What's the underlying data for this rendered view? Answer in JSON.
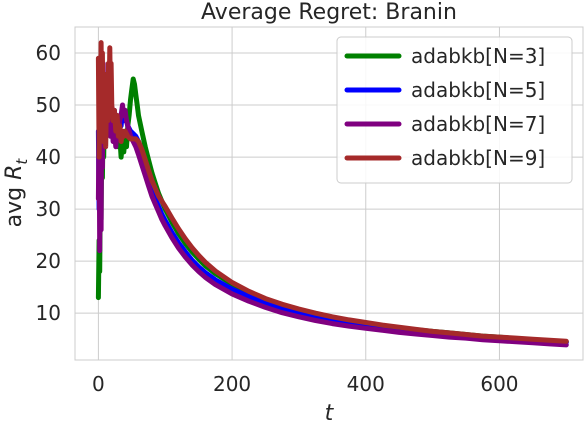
{
  "chart_data": {
    "type": "line",
    "title": "Average Regret: Branin",
    "xlabel": "t",
    "ylabel_prefix": "avg ",
    "ylabel_symbol": "R",
    "ylabel_sub": "t",
    "xlim": [
      -35,
      725
    ],
    "ylim": [
      1,
      65
    ],
    "xticks": [
      0,
      200,
      400,
      600
    ],
    "yticks": [
      10,
      20,
      30,
      40,
      50,
      60
    ],
    "grid": true,
    "legend_position": "top-right",
    "series": [
      {
        "name": "adabkb[N=3]",
        "color": "#008000",
        "points": [
          [
            0,
            13
          ],
          [
            1,
            24
          ],
          [
            2,
            18
          ],
          [
            3,
            34
          ],
          [
            4,
            28
          ],
          [
            5,
            42
          ],
          [
            6,
            36
          ],
          [
            7,
            46
          ],
          [
            8,
            40
          ],
          [
            9,
            49
          ],
          [
            10,
            44
          ],
          [
            12,
            47
          ],
          [
            14,
            45
          ],
          [
            16,
            49
          ],
          [
            18,
            46
          ],
          [
            20,
            48
          ],
          [
            22,
            45
          ],
          [
            24,
            47
          ],
          [
            26,
            44
          ],
          [
            28,
            46
          ],
          [
            30,
            42
          ],
          [
            32,
            44
          ],
          [
            34,
            40
          ],
          [
            36,
            43
          ],
          [
            38,
            41
          ],
          [
            40,
            44
          ],
          [
            42,
            42
          ],
          [
            44,
            46
          ],
          [
            46,
            48
          ],
          [
            48,
            51
          ],
          [
            50,
            53
          ],
          [
            52,
            55
          ],
          [
            54,
            54
          ],
          [
            56,
            52
          ],
          [
            58,
            50
          ],
          [
            60,
            48
          ],
          [
            65,
            45
          ],
          [
            70,
            42
          ],
          [
            75,
            39.5
          ],
          [
            80,
            37
          ],
          [
            85,
            35
          ],
          [
            90,
            33
          ],
          [
            95,
            31.5
          ],
          [
            100,
            30
          ],
          [
            110,
            27.5
          ],
          [
            120,
            25.3
          ],
          [
            130,
            23.4
          ],
          [
            140,
            21.8
          ],
          [
            150,
            20.4
          ],
          [
            160,
            19.1
          ],
          [
            175,
            17.6
          ],
          [
            200,
            15.6
          ],
          [
            225,
            14
          ],
          [
            250,
            12.7
          ],
          [
            275,
            11.6
          ],
          [
            300,
            10.7
          ],
          [
            325,
            9.9
          ],
          [
            350,
            9.2
          ],
          [
            375,
            8.6
          ],
          [
            400,
            8.1
          ],
          [
            425,
            7.6
          ],
          [
            450,
            7.2
          ],
          [
            475,
            6.8
          ],
          [
            500,
            6.5
          ],
          [
            525,
            6.2
          ],
          [
            550,
            5.9
          ],
          [
            575,
            5.6
          ],
          [
            600,
            5.4
          ],
          [
            625,
            5.1
          ],
          [
            650,
            4.9
          ],
          [
            675,
            4.7
          ],
          [
            700,
            4.5
          ]
        ]
      },
      {
        "name": "adabkb[N=5]",
        "color": "#0000ff",
        "points": [
          [
            0,
            45
          ],
          [
            1,
            30
          ],
          [
            2,
            50
          ],
          [
            3,
            38
          ],
          [
            4,
            52
          ],
          [
            5,
            44
          ],
          [
            6,
            55
          ],
          [
            7,
            47
          ],
          [
            8,
            52
          ],
          [
            9,
            46
          ],
          [
            10,
            50
          ],
          [
            12,
            47
          ],
          [
            14,
            52
          ],
          [
            16,
            48
          ],
          [
            18,
            53
          ],
          [
            20,
            49
          ],
          [
            22,
            47
          ],
          [
            24,
            49
          ],
          [
            26,
            46
          ],
          [
            28,
            48
          ],
          [
            30,
            45
          ],
          [
            32,
            47
          ],
          [
            34,
            46
          ],
          [
            36,
            49
          ],
          [
            38,
            47
          ],
          [
            40,
            48
          ],
          [
            44,
            46
          ],
          [
            48,
            45
          ],
          [
            52,
            44.5
          ],
          [
            56,
            44
          ],
          [
            60,
            43
          ],
          [
            65,
            41
          ],
          [
            70,
            38.5
          ],
          [
            75,
            36
          ],
          [
            80,
            34
          ],
          [
            85,
            32
          ],
          [
            90,
            30.5
          ],
          [
            95,
            29
          ],
          [
            100,
            27.8
          ],
          [
            110,
            25.5
          ],
          [
            120,
            23.5
          ],
          [
            130,
            21.8
          ],
          [
            140,
            20.2
          ],
          [
            150,
            18.9
          ],
          [
            160,
            17.8
          ],
          [
            175,
            16.4
          ],
          [
            200,
            14.6
          ],
          [
            225,
            13.2
          ],
          [
            250,
            12
          ],
          [
            275,
            11
          ],
          [
            300,
            10.2
          ],
          [
            325,
            9.5
          ],
          [
            350,
            8.9
          ],
          [
            375,
            8.3
          ],
          [
            400,
            7.8
          ],
          [
            425,
            7.4
          ],
          [
            450,
            7
          ],
          [
            475,
            6.6
          ],
          [
            500,
            6.3
          ],
          [
            525,
            6
          ],
          [
            550,
            5.7
          ],
          [
            575,
            5.5
          ],
          [
            600,
            5.2
          ],
          [
            625,
            5
          ],
          [
            650,
            4.8
          ],
          [
            675,
            4.6
          ],
          [
            700,
            4.4
          ]
        ]
      },
      {
        "name": "adabkb[N=7]",
        "color": "#800080",
        "points": [
          [
            0,
            32
          ],
          [
            1,
            48
          ],
          [
            2,
            22
          ],
          [
            3,
            52
          ],
          [
            4,
            26
          ],
          [
            5,
            55
          ],
          [
            6,
            38
          ],
          [
            7,
            58
          ],
          [
            8,
            44
          ],
          [
            9,
            56
          ],
          [
            10,
            46
          ],
          [
            12,
            52
          ],
          [
            14,
            48
          ],
          [
            16,
            50
          ],
          [
            18,
            44
          ],
          [
            20,
            47
          ],
          [
            22,
            43
          ],
          [
            24,
            45
          ],
          [
            26,
            42
          ],
          [
            28,
            46
          ],
          [
            30,
            44
          ],
          [
            32,
            47
          ],
          [
            34,
            48
          ],
          [
            36,
            50
          ],
          [
            38,
            48
          ],
          [
            40,
            49
          ],
          [
            42,
            47
          ],
          [
            44,
            46
          ],
          [
            48,
            44
          ],
          [
            52,
            43
          ],
          [
            56,
            42
          ],
          [
            60,
            40.5
          ],
          [
            65,
            38.5
          ],
          [
            70,
            36.5
          ],
          [
            75,
            34.5
          ],
          [
            80,
            32.5
          ],
          [
            85,
            31
          ],
          [
            90,
            29.5
          ],
          [
            95,
            28
          ],
          [
            100,
            26.8
          ],
          [
            110,
            24.5
          ],
          [
            120,
            22.5
          ],
          [
            130,
            20.8
          ],
          [
            140,
            19.3
          ],
          [
            150,
            18
          ],
          [
            160,
            16.9
          ],
          [
            175,
            15.5
          ],
          [
            200,
            13.7
          ],
          [
            225,
            12.3
          ],
          [
            250,
            11.1
          ],
          [
            275,
            10.1
          ],
          [
            300,
            9.3
          ],
          [
            325,
            8.6
          ],
          [
            350,
            8
          ],
          [
            375,
            7.5
          ],
          [
            400,
            7.1
          ],
          [
            425,
            6.7
          ],
          [
            450,
            6.3
          ],
          [
            475,
            6
          ],
          [
            500,
            5.7
          ],
          [
            525,
            5.4
          ],
          [
            550,
            5.2
          ],
          [
            575,
            4.9
          ],
          [
            600,
            4.7
          ],
          [
            625,
            4.5
          ],
          [
            650,
            4.3
          ],
          [
            675,
            4.1
          ],
          [
            700,
            3.9
          ]
        ]
      },
      {
        "name": "adabkb[N=9]",
        "color": "#a52a2a",
        "points": [
          [
            0,
            59
          ],
          [
            1,
            40
          ],
          [
            2,
            57
          ],
          [
            3,
            44
          ],
          [
            4,
            62
          ],
          [
            5,
            48
          ],
          [
            6,
            60
          ],
          [
            7,
            43
          ],
          [
            8,
            55
          ],
          [
            9,
            46
          ],
          [
            10,
            52
          ],
          [
            11,
            42
          ],
          [
            12,
            50
          ],
          [
            13,
            56
          ],
          [
            14,
            47
          ],
          [
            15,
            58
          ],
          [
            16,
            50
          ],
          [
            17,
            61
          ],
          [
            18,
            52
          ],
          [
            19,
            58
          ],
          [
            20,
            50
          ],
          [
            22,
            47
          ],
          [
            24,
            49
          ],
          [
            26,
            45
          ],
          [
            28,
            48
          ],
          [
            30,
            44
          ],
          [
            32,
            46
          ],
          [
            34,
            43
          ],
          [
            36,
            45
          ],
          [
            38,
            44
          ],
          [
            40,
            45
          ],
          [
            44,
            44
          ],
          [
            48,
            43.5
          ],
          [
            52,
            43.5
          ],
          [
            56,
            43.5
          ],
          [
            60,
            43
          ],
          [
            65,
            41.5
          ],
          [
            70,
            39.5
          ],
          [
            75,
            37.5
          ],
          [
            80,
            35.5
          ],
          [
            85,
            34
          ],
          [
            90,
            32.5
          ],
          [
            95,
            31.5
          ],
          [
            100,
            30.5
          ],
          [
            110,
            28.3
          ],
          [
            120,
            26.2
          ],
          [
            130,
            24.3
          ],
          [
            140,
            22.6
          ],
          [
            150,
            21.1
          ],
          [
            160,
            19.8
          ],
          [
            175,
            18.1
          ],
          [
            200,
            15.9
          ],
          [
            225,
            14.2
          ],
          [
            250,
            12.8
          ],
          [
            275,
            11.7
          ],
          [
            300,
            10.8
          ],
          [
            325,
            10
          ],
          [
            350,
            9.3
          ],
          [
            375,
            8.7
          ],
          [
            400,
            8.2
          ],
          [
            425,
            7.7
          ],
          [
            450,
            7.3
          ],
          [
            475,
            6.9
          ],
          [
            500,
            6.5
          ],
          [
            525,
            6.2
          ],
          [
            550,
            5.9
          ],
          [
            575,
            5.6
          ],
          [
            600,
            5.4
          ],
          [
            625,
            5.2
          ],
          [
            650,
            5
          ],
          [
            675,
            4.8
          ],
          [
            700,
            4.6
          ]
        ]
      }
    ]
  }
}
